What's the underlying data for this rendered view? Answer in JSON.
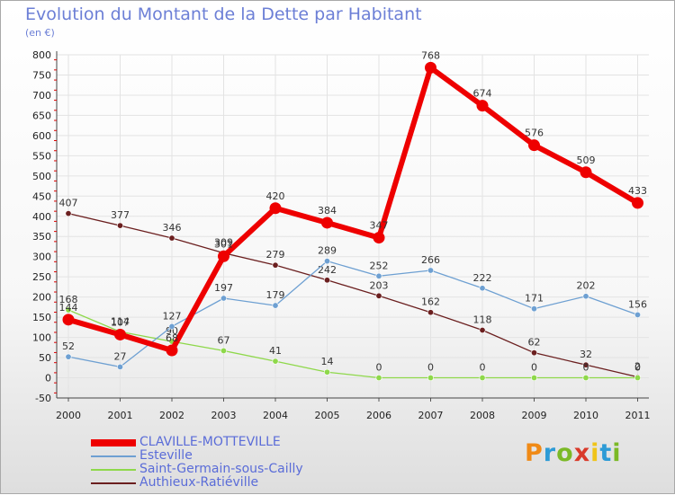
{
  "header": {
    "title": "Evolution du Montant de la Dette par Habitant",
    "unit": "(en €)"
  },
  "logo": {
    "text": "Proxiti",
    "colors": [
      "#f08a16",
      "#2d9bd6",
      "#7bb926",
      "#d93a2a",
      "#f0c419",
      "#2d9bd6",
      "#7bb926"
    ]
  },
  "chart_data": {
    "type": "line",
    "x": [
      "2000",
      "2001",
      "2002",
      "2003",
      "2004",
      "2005",
      "2006",
      "2007",
      "2008",
      "2009",
      "2010",
      "2011"
    ],
    "ylim": [
      -50,
      800
    ],
    "yticks": [
      -50,
      0,
      50,
      100,
      150,
      200,
      250,
      300,
      350,
      400,
      450,
      500,
      550,
      600,
      650,
      700,
      750,
      800
    ],
    "grid": true,
    "legend_position": "bottom-left",
    "series": [
      {
        "name": "Authieux-Ratiéville",
        "color": "#6b1f1f",
        "width": 1.3,
        "marker": 3.2,
        "values": [
          407,
          377,
          346,
          309,
          279,
          242,
          203,
          162,
          118,
          62,
          32,
          2
        ]
      },
      {
        "name": "Saint-Germain-sous-Cailly",
        "color": "#8ed84a",
        "width": 1.3,
        "marker": 3.2,
        "values": [
          168,
          114,
          90,
          67,
          41,
          14,
          0,
          0,
          0,
          0,
          0,
          0
        ]
      },
      {
        "name": "Esteville",
        "color": "#6ea0d2",
        "width": 1.3,
        "marker": 3.2,
        "values": [
          52,
          27,
          127,
          197,
          179,
          289,
          252,
          266,
          222,
          171,
          202,
          156
        ]
      },
      {
        "name": "CLAVILLE-MOTTEVILLE",
        "color": "#ee0000",
        "width": 6,
        "marker": 6.5,
        "values": [
          144,
          107,
          68,
          301,
          420,
          384,
          347,
          768,
          674,
          576,
          509,
          433
        ]
      }
    ]
  }
}
